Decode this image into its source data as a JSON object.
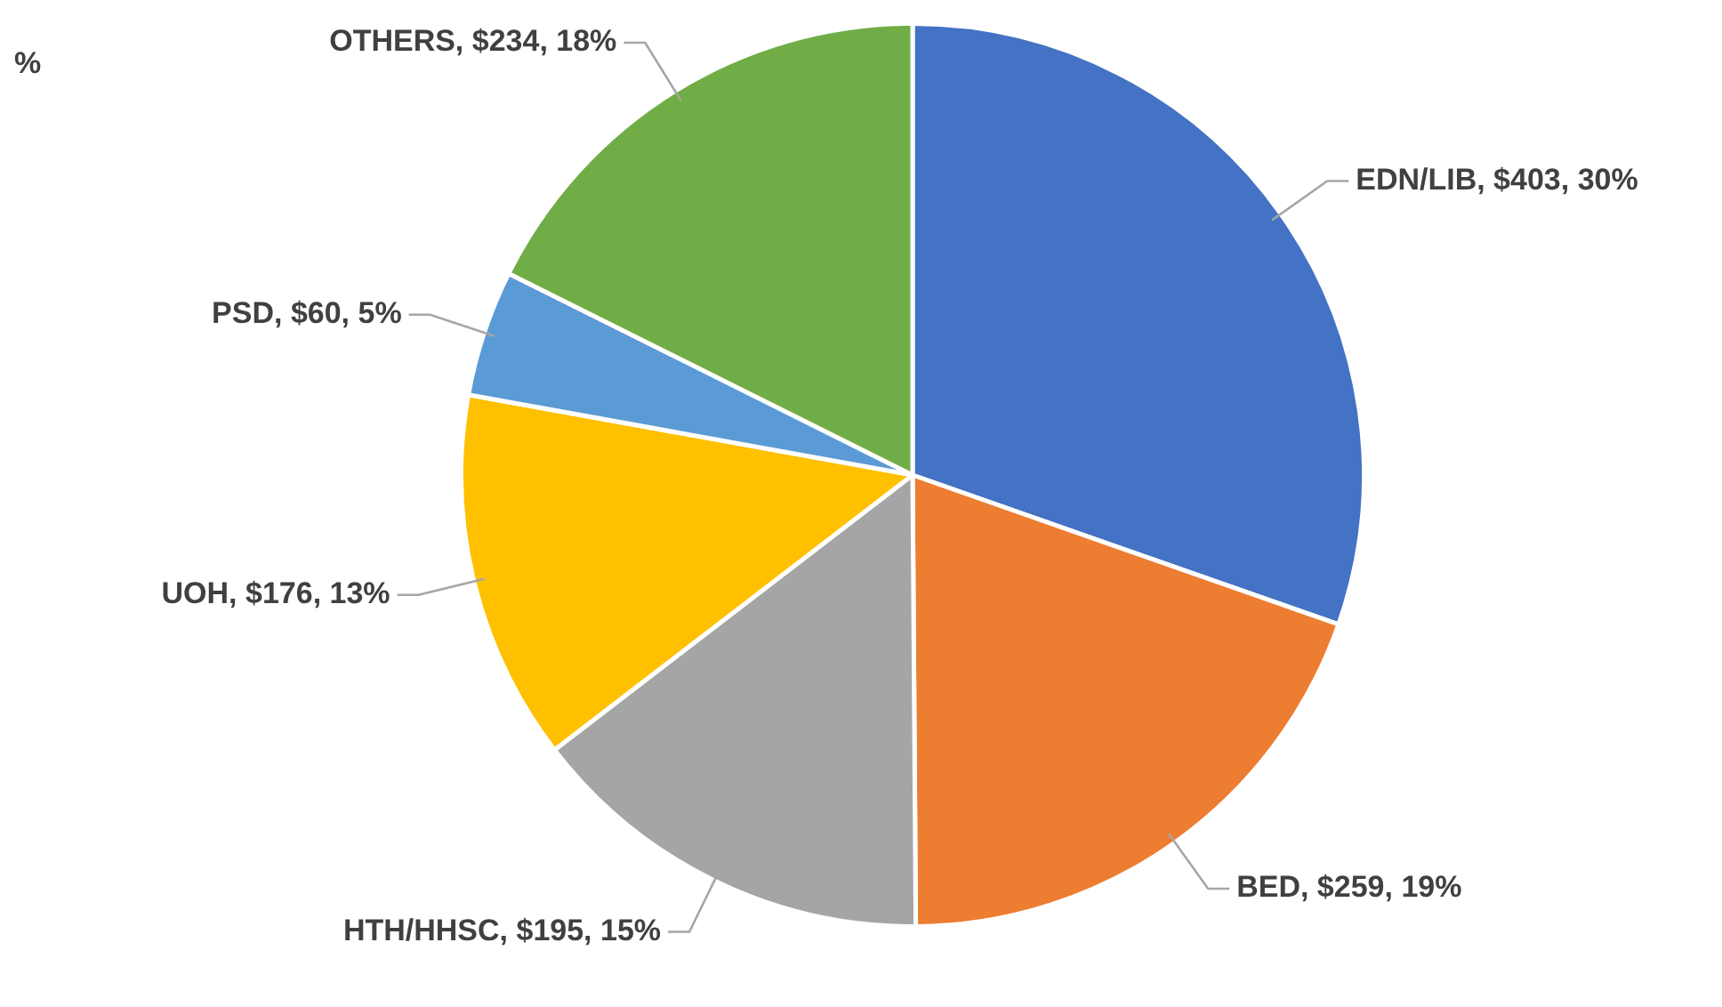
{
  "chart_data": {
    "type": "pie",
    "categories": [
      "EDN/LIB",
      "BED",
      "HTH/HHSC",
      "UOH",
      "PSD",
      "OTHERS"
    ],
    "values": [
      403,
      259,
      195,
      176,
      60,
      234
    ],
    "colors": [
      "#4472c4",
      "#ed7d31",
      "#a5a5a5",
      "#ffc000",
      "#5b9bd5",
      "#70ad47"
    ],
    "value_labels": [
      "$403, 30%",
      "$259, 19%",
      "$195, 15%",
      "$176, 13%",
      "$60, 5%",
      "$234, 18%"
    ],
    "annotations": [
      "%"
    ],
    "legend": false
  }
}
